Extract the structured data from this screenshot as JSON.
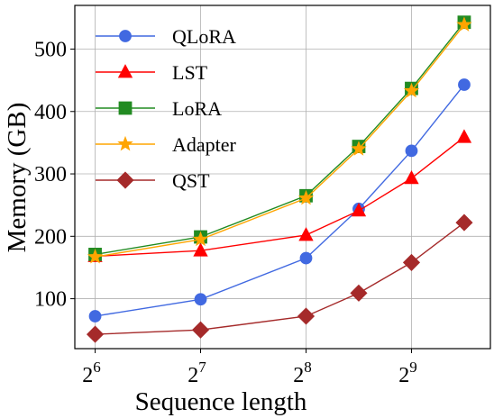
{
  "chart_data": {
    "type": "line",
    "xlabel": "Sequence length",
    "ylabel": "Memory (GB)",
    "x_scale": "log2",
    "x_ticks": [
      {
        "value": 64,
        "base": "2",
        "exp": "6"
      },
      {
        "value": 128,
        "base": "2",
        "exp": "7"
      },
      {
        "value": 256,
        "base": "2",
        "exp": "8"
      },
      {
        "value": 512,
        "base": "2",
        "exp": "9"
      }
    ],
    "y_ticks": [
      100,
      200,
      300,
      400,
      500
    ],
    "xlim": [
      56,
      860
    ],
    "ylim": [
      20,
      570
    ],
    "x": [
      64,
      128,
      256,
      362,
      512,
      724
    ],
    "grid": true,
    "legend_position": "top-left",
    "series": [
      {
        "name": "QLoRA",
        "color": "#4169E1",
        "marker": "circle",
        "values": [
          72,
          99,
          165,
          244,
          337,
          443
        ]
      },
      {
        "name": "LST",
        "color": "#FF0000",
        "marker": "triangle",
        "values": [
          168,
          177,
          202,
          241,
          293,
          359
        ]
      },
      {
        "name": "LoRA",
        "color": "#228B22",
        "marker": "square",
        "values": [
          171,
          199,
          265,
          344,
          437,
          543
        ]
      },
      {
        "name": "Adapter",
        "color": "#FFA500",
        "marker": "star",
        "values": [
          167,
          195,
          261,
          340,
          433,
          539
        ]
      },
      {
        "name": "QST",
        "color": "#A52A2A",
        "marker": "diamond",
        "values": [
          43,
          50,
          72,
          109,
          158,
          222
        ]
      }
    ]
  }
}
